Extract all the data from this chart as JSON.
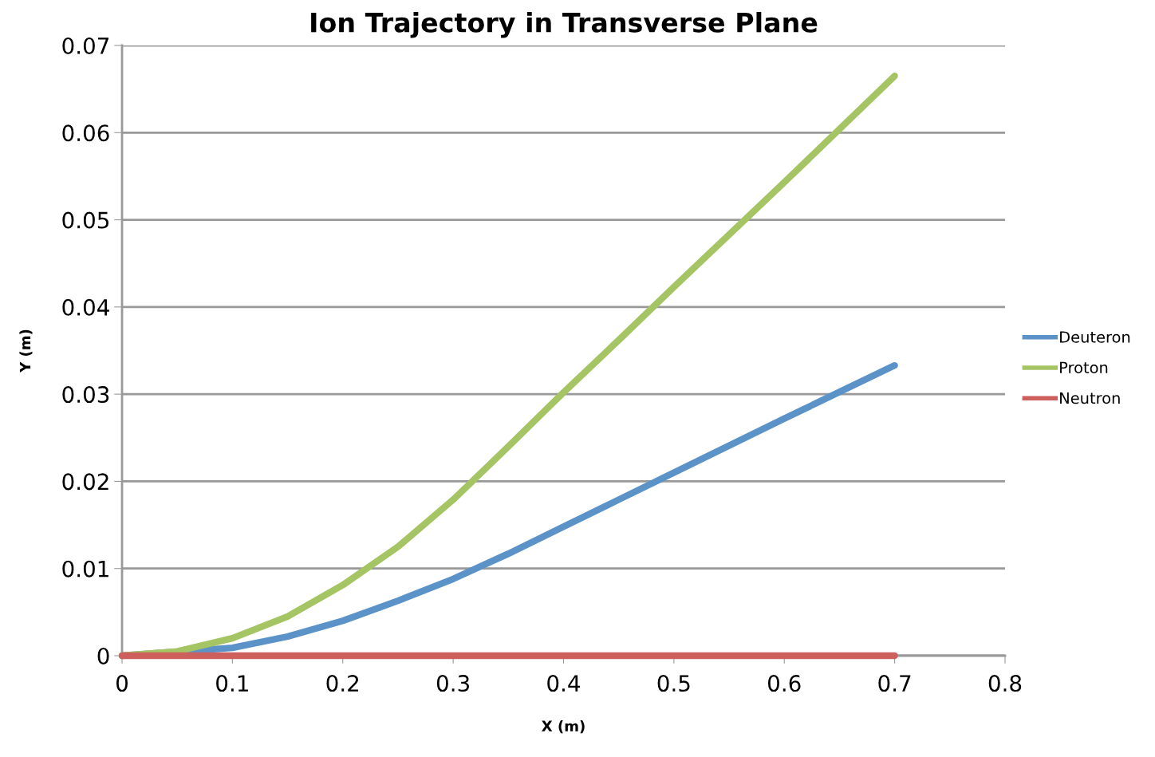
{
  "chart_data": {
    "type": "line",
    "title": "Ion Trajectory in Transverse Plane",
    "xlabel": "X (m)",
    "ylabel": "Y (m)",
    "xlim": [
      0,
      0.8
    ],
    "xticks": [
      0,
      0.1,
      0.2,
      0.3,
      0.4,
      0.5,
      0.6,
      0.7,
      0.8
    ],
    "ylim": [
      0,
      0.07
    ],
    "yticks": [
      0,
      0.01,
      0.02,
      0.03,
      0.04,
      0.05,
      0.06,
      0.07
    ],
    "grid": "y",
    "legend": "right",
    "marker": "none",
    "line_style": "solid",
    "series": [
      {
        "name": "Deuteron",
        "color": "#5b93c8",
        "x": [
          0,
          0.1,
          0.15,
          0.2,
          0.25,
          0.3,
          0.35,
          0.4,
          0.45,
          0.5,
          0.6,
          0.7
        ],
        "values": [
          0,
          0.0009,
          0.0022,
          0.004,
          0.0063,
          0.0088,
          0.0117,
          0.0148,
          0.0179,
          0.021,
          0.0272,
          0.0333
        ]
      },
      {
        "name": "Proton",
        "color": "#a5c463",
        "x": [
          0,
          0.05,
          0.1,
          0.15,
          0.2,
          0.25,
          0.3,
          0.35,
          0.4,
          0.45,
          0.5,
          0.6,
          0.7
        ],
        "values": [
          0,
          0.0005,
          0.002,
          0.0045,
          0.0081,
          0.0125,
          0.0179,
          0.024,
          0.0302,
          0.0362,
          0.0423,
          0.0543,
          0.0665
        ]
      },
      {
        "name": "Neutron",
        "color": "#cd5f5c",
        "x": [
          0,
          0.7
        ],
        "values": [
          0,
          0
        ]
      }
    ]
  }
}
